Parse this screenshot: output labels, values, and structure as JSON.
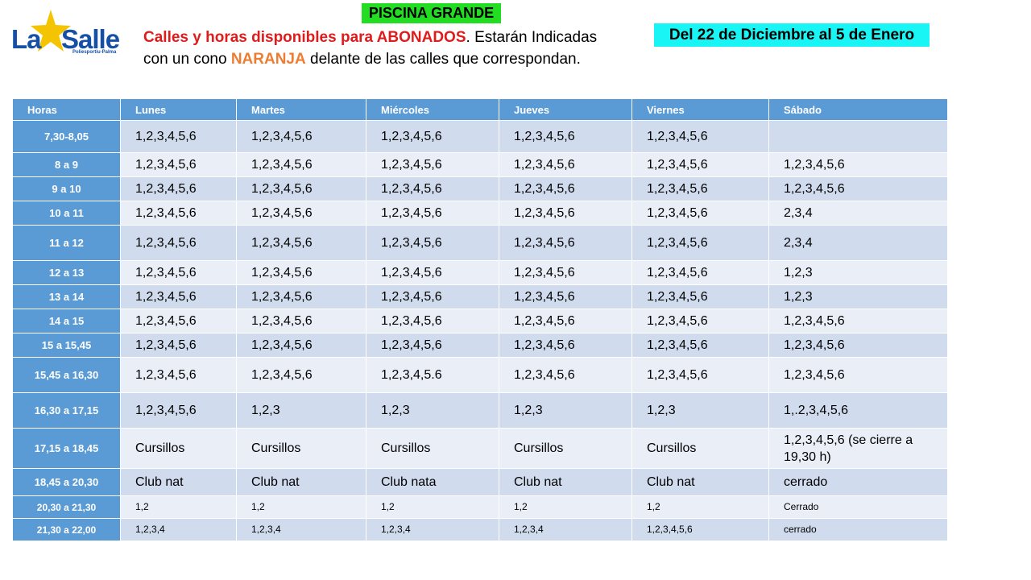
{
  "logo": {
    "word_left": "La",
    "word_right": "Salle",
    "subtitle": "Poliesportiu·Palma"
  },
  "title": "PISCINA GRANDE",
  "intro": {
    "red_text": "Calles y horas disponibles para ABONADOS",
    "text_after_red": ". Estarán Indicadas",
    "line2_before": "con un cono ",
    "orange_text": "NARANJA",
    "line2_after": " delante de las calles que correspondan."
  },
  "date_range": "Del 22 de Diciembre  al 5 de Enero",
  "colors": {
    "header_blue": "#5b9bd5",
    "title_green": "#22dd22",
    "date_cyan": "#19f4f4",
    "red": "#e01b1b",
    "orange": "#ed7d31"
  },
  "table": {
    "headers": [
      "Horas",
      "Lunes",
      "Martes",
      "Miércoles",
      "Jueves",
      "Viernes",
      "Sábado"
    ],
    "rows": [
      {
        "hour": "7,30-8,05",
        "cells": [
          "1,2,3,4,5,6",
          "1,2,3,4,5,6",
          "1,2,3,4,5,6",
          "1,2,3,4,5,6",
          "1,2,3,4,5,6",
          ""
        ]
      },
      {
        "hour": "8 a 9",
        "cells": [
          "1,2,3,4,5,6",
          "1,2,3,4,5,6",
          "1,2,3,4,5,6",
          "1,2,3,4,5,6",
          "1,2,3,4,5,6",
          "1,2,3,4,5,6"
        ]
      },
      {
        "hour": "9 a 10",
        "cells": [
          "1,2,3,4,5,6",
          "1,2,3,4,5,6",
          "1,2,3,4,5,6",
          "1,2,3,4,5,6",
          "1,2,3,4,5,6",
          "1,2,3,4,5,6"
        ]
      },
      {
        "hour": "10 a 11",
        "cells": [
          "1,2,3,4,5,6",
          "1,2,3,4,5,6",
          "1,2,3,4,5,6",
          "1,2,3,4,5,6",
          "1,2,3,4,5,6",
          "2,3,4"
        ]
      },
      {
        "hour": "11 a 12",
        "cells": [
          "1,2,3,4,5,6",
          "1,2,3,4,5,6",
          "1,2,3,4,5,6",
          "1,2,3,4,5,6",
          "1,2,3,4,5,6",
          "2,3,4"
        ]
      },
      {
        "hour": "12 a 13",
        "cells": [
          "1,2,3,4,5,6",
          "1,2,3,4,5,6",
          "1,2,3,4,5,6",
          "1,2,3,4,5,6",
          "1,2,3,4,5,6",
          "1,2,3"
        ]
      },
      {
        "hour": "13 a 14",
        "cells": [
          "1,2,3,4,5,6",
          "1,2,3,4,5,6",
          "1,2,3,4,5,6",
          "1,2,3,4,5,6",
          "1,2,3,4,5,6",
          "1,2,3"
        ]
      },
      {
        "hour": "14 a 15",
        "cells": [
          "1,2,3,4,5,6",
          "1,2,3,4,5,6",
          "1,2,3,4,5,6",
          "1,2,3,4,5,6",
          "1,2,3,4,5,6",
          "1,2,3,4,5,6"
        ]
      },
      {
        "hour": "15 a 15,45",
        "cells": [
          "1,2,3,4,5,6",
          "1,2,3,4,5,6",
          "1,2,3,4,5,6",
          "1,2,3,4,5,6",
          "1,2,3,4,5,6",
          "1,2,3,4,5,6"
        ]
      },
      {
        "hour": "15,45 a 16,30",
        "cells": [
          "1,2,3,4,5,6",
          "1,2,3,4,5,6",
          "1,2,3,4,5.6",
          "1,2,3,4,5,6",
          "1,2,3,4,5,6",
          "1,2,3,4,5,6"
        ]
      },
      {
        "hour": "16,30 a 17,15",
        "cells": [
          "1,2,3,4,5,6",
          "1,2,3",
          "1,2,3",
          "1,2,3",
          "1,2,3",
          "1,.2,3,4,5,6"
        ]
      },
      {
        "hour": "17,15 a  18,45",
        "cells": [
          "Cursillos",
          "Cursillos",
          "Cursillos",
          "Cursillos",
          " Cursillos",
          "1,2,3,4,5,6 (se cierre a 19,30 h)"
        ]
      },
      {
        "hour": "18,45 a 20,30",
        "cells": [
          "Club nat",
          "Club nat",
          "Club nata",
          "Club nat",
          "Club nat",
          "cerrado"
        ]
      },
      {
        "hour": "20,30 a 21,30",
        "cells": [
          "1,2",
          "1,2",
          "1,2",
          "1,2",
          "1,2",
          "Cerrado"
        ]
      },
      {
        "hour": "21,30 a 22,00",
        "cells": [
          "1,2,3,4",
          "1,2,3,4",
          "1,2,3,4",
          "1,2,3,4",
          "1,2,3,4,5,6",
          "cerrado"
        ]
      }
    ]
  }
}
